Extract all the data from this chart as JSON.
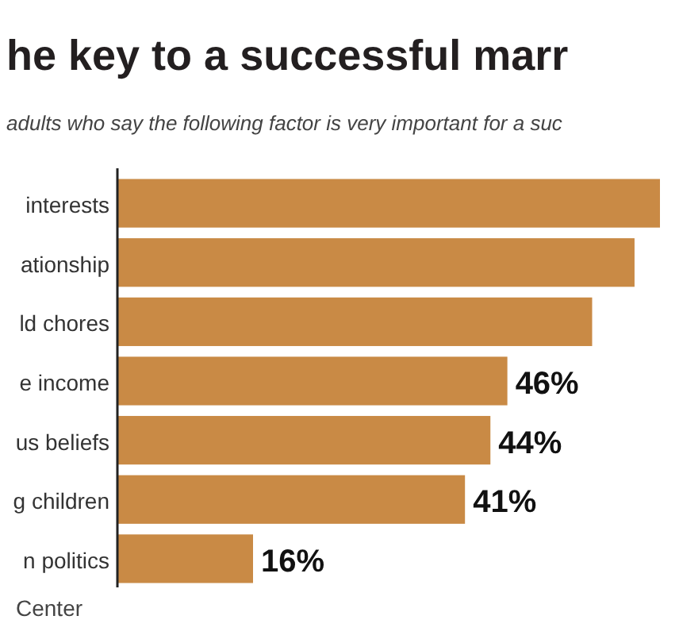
{
  "chart_data": {
    "type": "bar",
    "orientation": "horizontal",
    "title": "he key to a successful marr",
    "subtitle": "adults who say the following factor is very important for a suc",
    "categories": [
      "interests",
      "ationship",
      "ld chores",
      "e income",
      "us beliefs",
      "g children",
      "n politics"
    ],
    "values": [
      64,
      61,
      56,
      46,
      44,
      41,
      16
    ],
    "value_labels": [
      null,
      null,
      null,
      "46%",
      "44%",
      "41%",
      "16%"
    ],
    "color": "#c98a45",
    "annotations": [
      "Center"
    ]
  }
}
